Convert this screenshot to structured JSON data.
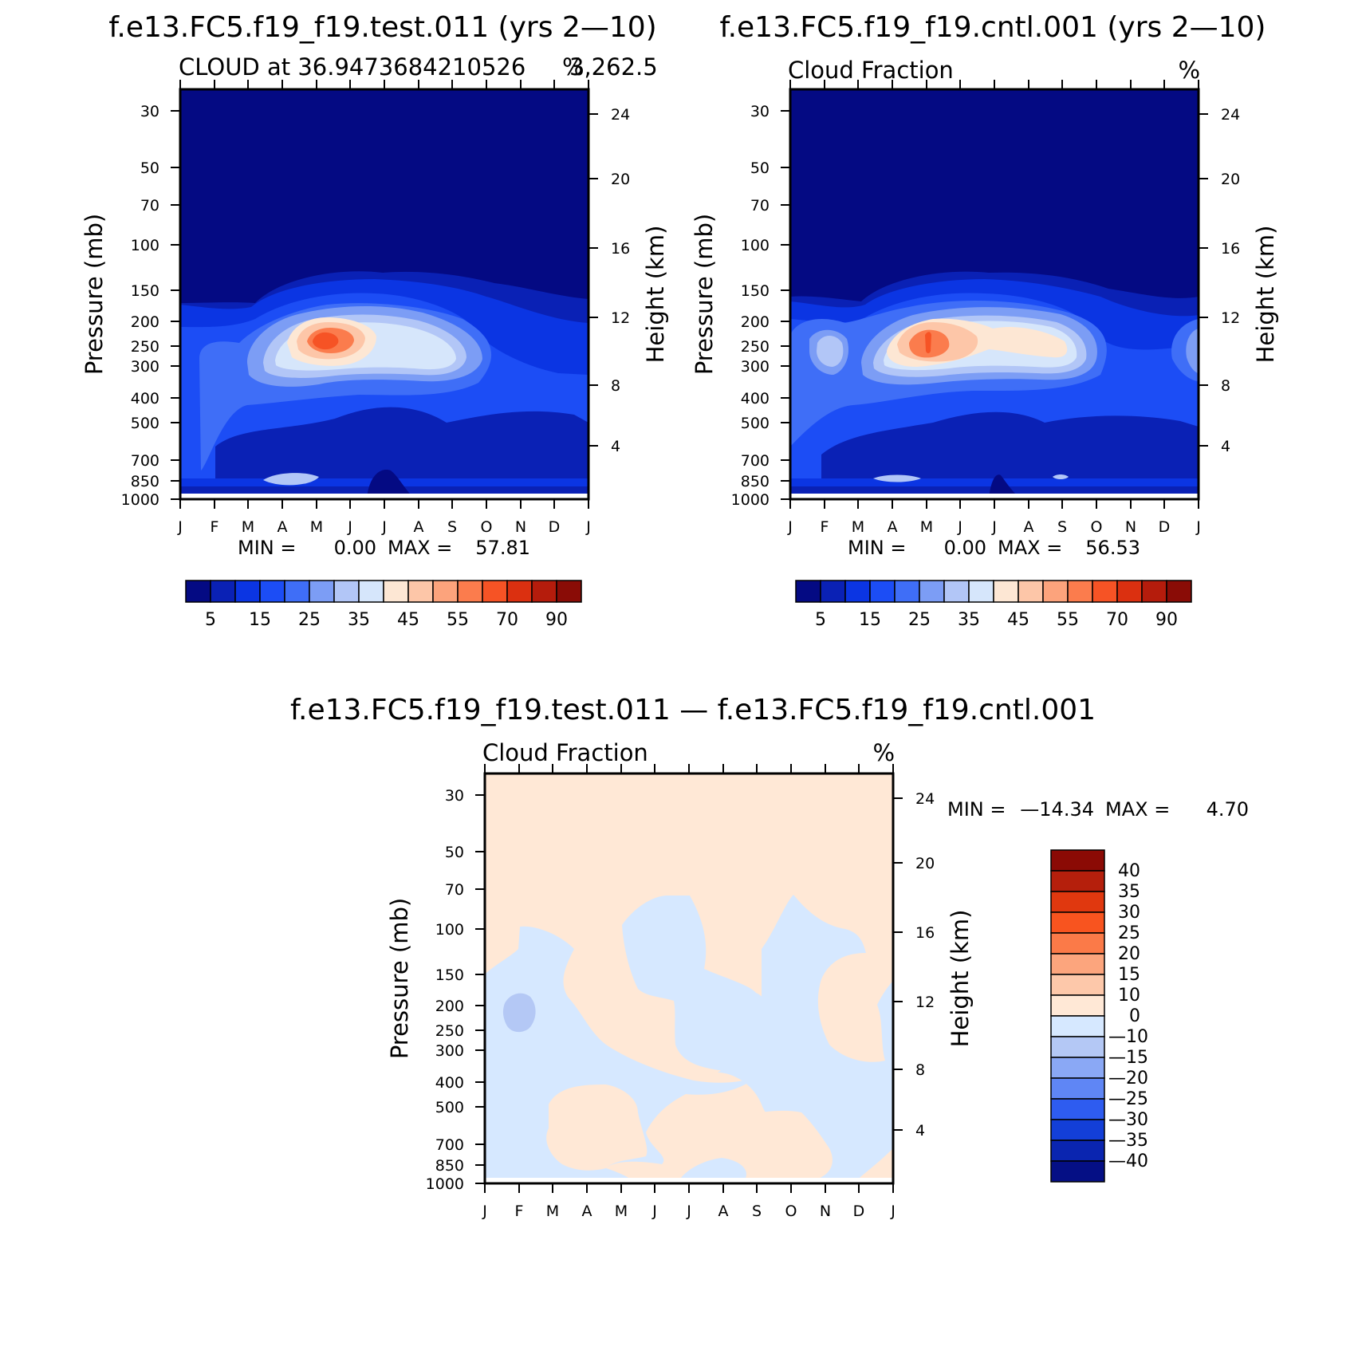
{
  "colors": {
    "panel_background": "#0A1A8F",
    "plus_pale": "#FFE8D6",
    "minus_pale": "#D6E8FF",
    "minus_light": "#B4C8F5"
  },
  "chart_data": [
    {
      "type": "contour",
      "id": "test",
      "title": "f.e13.FC5.f19_f19.test.011 (yrs 2—10)",
      "subtitle_left": "CLOUD at 36.9473684210526",
      "subtitle_right": "%",
      "subtitle_extra": "3,262.5",
      "ylabel": "Pressure (mb)",
      "ylabel_right": "Height (km)",
      "x_ticks": [
        "J",
        "F",
        "M",
        "A",
        "M",
        "J",
        "J",
        "A",
        "S",
        "O",
        "N",
        "D",
        "J"
      ],
      "pressure_ticks": [
        "30",
        "50",
        "70",
        "100",
        "150",
        "200",
        "250",
        "300",
        "400",
        "500",
        "700",
        "850",
        "1000"
      ],
      "height_ticks": [
        "24",
        "20",
        "16",
        "12",
        "8",
        "4"
      ],
      "min_label": "MIN =",
      "min_value": "0.00",
      "max_label": "MAX =",
      "max_value": "57.81",
      "colorbar_labels": [
        "5",
        "15",
        "25",
        "35",
        "45",
        "55",
        "70",
        "90"
      ],
      "colorbar_colors": [
        "#040a83",
        "#0a21b5",
        "#0b35e3",
        "#1c4df5",
        "#3f6ef7",
        "#7c9df5",
        "#b2c6f7",
        "#d6e6fb",
        "#fde7d4",
        "#fdc6a8",
        "#fca37c",
        "#fb7c4d",
        "#f65325",
        "#db3010",
        "#b51c0c",
        "#8a0c06"
      ]
    },
    {
      "type": "contour",
      "id": "cntl",
      "title": "f.e13.FC5.f19_f19.cntl.001 (yrs 2—10)",
      "subtitle_left": "Cloud Fraction",
      "subtitle_right": "%",
      "ylabel": "Pressure (mb)",
      "ylabel_right": "Height (km)",
      "x_ticks": [
        "J",
        "F",
        "M",
        "A",
        "M",
        "J",
        "J",
        "A",
        "S",
        "O",
        "N",
        "D",
        "J"
      ],
      "pressure_ticks": [
        "30",
        "50",
        "70",
        "100",
        "150",
        "200",
        "250",
        "300",
        "400",
        "500",
        "700",
        "850",
        "1000"
      ],
      "height_ticks": [
        "24",
        "20",
        "16",
        "12",
        "8",
        "4"
      ],
      "min_label": "MIN =",
      "min_value": "0.00",
      "max_label": "MAX =",
      "max_value": "56.53",
      "colorbar_labels": [
        "5",
        "15",
        "25",
        "35",
        "45",
        "55",
        "70",
        "90"
      ],
      "colorbar_colors": [
        "#040a83",
        "#0a21b5",
        "#0b35e3",
        "#1c4df5",
        "#3f6ef7",
        "#7c9df5",
        "#b2c6f7",
        "#d6e6fb",
        "#fde7d4",
        "#fdc6a8",
        "#fca37c",
        "#fb7c4d",
        "#f65325",
        "#db3010",
        "#b51c0c",
        "#8a0c06"
      ]
    },
    {
      "type": "contour",
      "id": "diff",
      "title": "f.e13.FC5.f19_f19.test.011 — f.e13.FC5.f19_f19.cntl.001",
      "subtitle_left": "Cloud Fraction",
      "subtitle_right": "%",
      "ylabel": "Pressure (mb)",
      "ylabel_right": "Height (km)",
      "x_ticks": [
        "J",
        "F",
        "M",
        "A",
        "M",
        "J",
        "J",
        "A",
        "S",
        "O",
        "N",
        "D",
        "J"
      ],
      "pressure_ticks": [
        "30",
        "50",
        "70",
        "100",
        "150",
        "200",
        "250",
        "300",
        "400",
        "500",
        "700",
        "850",
        "1000"
      ],
      "height_ticks": [
        "24",
        "20",
        "16",
        "12",
        "8",
        "4"
      ],
      "min_label": "MIN =",
      "min_value": "—14.34",
      "max_label": "MAX =",
      "max_value": "4.70",
      "colorbar_labels": [
        "40",
        "35",
        "30",
        "25",
        "20",
        "15",
        "10",
        "0",
        "—10",
        "—15",
        "—20",
        "—25",
        "—30",
        "—35",
        "—40"
      ],
      "colorbar_colors": [
        "#8b0a05",
        "#b51f0c",
        "#e0380f",
        "#f8541f",
        "#fb7a48",
        "#fca57d",
        "#fdc8aa",
        "#ffe8d6",
        "#d6e8ff",
        "#b4c8f5",
        "#8aa8f5",
        "#5f86f5",
        "#2e5cf0",
        "#133fd8",
        "#0a25b0",
        "#050f85"
      ]
    }
  ]
}
